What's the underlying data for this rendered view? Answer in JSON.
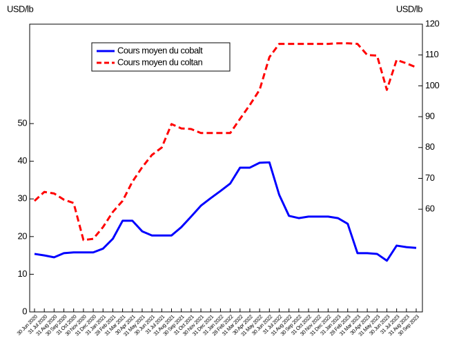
{
  "chart_data": {
    "type": "line",
    "y_label": "USD/lb",
    "y2_label": "USD/lb",
    "categories": [
      "30 Jun 2020",
      "31 Jul 2020",
      "31 Aug 2020",
      "30 Sep 2020",
      "31 Oct 2020",
      "30 Nov 2020",
      "31 Dec 2020",
      "31 Jan 2021",
      "28 Feb 2021",
      "31 Mar 2021",
      "30 Apr 2021",
      "31 May 2021",
      "30 Jun 2021",
      "31 Jul 2021",
      "31 Aug 2021",
      "30 Sep 2021",
      "31 Oct 2021",
      "30 Nov 2021",
      "31 Dec 2021",
      "31 Jan 2022",
      "28 Feb 2022",
      "31 Mar 2022",
      "30 Apr 2022",
      "31 May 2022",
      "30 Jun 2022",
      "31 Jul 2022",
      "31 Aug 2022",
      "30 Sep 2022",
      "31 Oct 2022",
      "30 Nov 2022",
      "31 Dec 2022",
      "31 Jan 2023",
      "28 Feb 2023",
      "31 Mar 2023",
      "30 Apr 2023",
      "31 May 2023",
      "30 Jun 2023",
      "31 Jul 2023",
      "31 Aug 2023",
      "30 Sep 2023"
    ],
    "series": [
      {
        "name": "Cours moyen du cobalt",
        "color": "#0000ff",
        "dash": false,
        "axis": "y",
        "values": [
          15.4,
          15.0,
          14.5,
          15.6,
          15.8,
          15.8,
          15.8,
          16.8,
          19.4,
          24.2,
          24.2,
          21.4,
          20.3,
          20.3,
          20.3,
          22.5,
          25.3,
          28.2,
          30.2,
          32.1,
          34.1,
          38.3,
          38.3,
          39.6,
          39.7,
          31.1,
          25.5,
          24.9,
          25.3,
          25.3,
          25.3,
          24.9,
          23.4,
          15.6,
          15.6,
          15.4,
          13.6,
          17.6,
          17.2,
          17.0
        ]
      },
      {
        "name": "Cours moyen du coltan",
        "color": "#ff0000",
        "dash": true,
        "axis": "y2",
        "values": [
          62.7,
          65.6,
          65.1,
          63.1,
          62.0,
          50.0,
          50.4,
          54.2,
          59.1,
          62.7,
          68.9,
          73.6,
          77.6,
          80.0,
          87.6,
          86.2,
          86.0,
          84.7,
          84.7,
          84.7,
          84.7,
          89.3,
          93.8,
          98.7,
          109.3,
          113.6,
          113.6,
          113.6,
          113.6,
          113.6,
          113.6,
          113.8,
          113.8,
          113.6,
          110.0,
          109.8,
          98.7,
          108.4,
          107.3,
          106.0
        ]
      }
    ],
    "ylim": [
      0,
      76.4
    ],
    "yticks": [
      0,
      10,
      20,
      30,
      40,
      50
    ],
    "y2lim": [
      26.7,
      120
    ],
    "y2ticks": [
      60,
      70,
      80,
      90,
      100,
      110,
      120
    ],
    "legend": "upper left"
  }
}
